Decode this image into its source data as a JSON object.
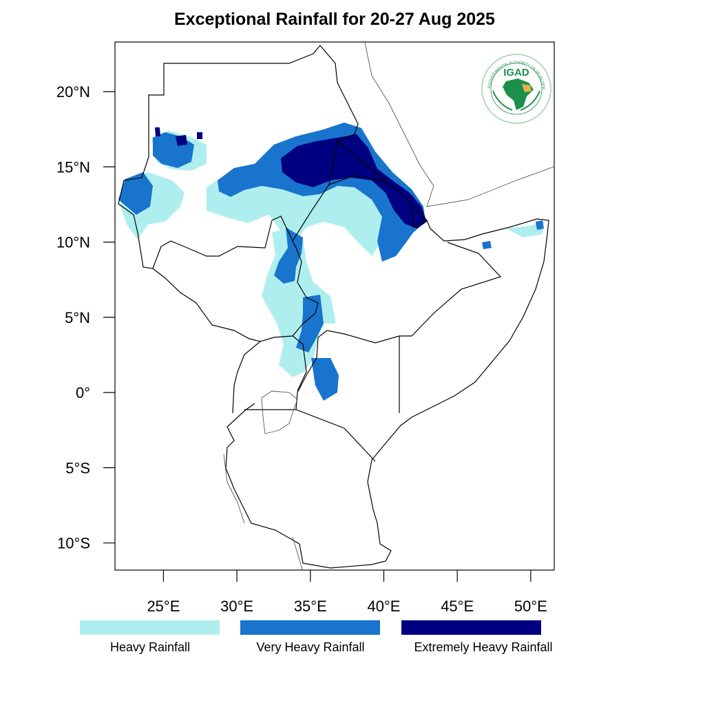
{
  "title": "Exceptional Rainfall for 20-27 Aug 2025",
  "axes": {
    "lat_ticks": [
      "20°N",
      "15°N",
      "10°N",
      "5°N",
      "0°",
      "5°S",
      "10°S"
    ],
    "lon_ticks": [
      "25°E",
      "30°E",
      "35°E",
      "40°E",
      "45°E",
      "50°E"
    ],
    "lat_values": [
      20,
      15,
      10,
      5,
      0,
      -5,
      -10
    ],
    "lon_values": [
      25,
      30,
      35,
      40,
      45,
      50
    ],
    "lon_range": [
      21.7,
      51.6
    ],
    "lat_range": [
      -11.8,
      23.3
    ]
  },
  "legend": [
    {
      "label": "Heavy Rainfall",
      "color": "#AFEEEE"
    },
    {
      "label": "Very Heavy Rainfall",
      "color": "#1874CD"
    },
    {
      "label": "Extremely Heavy Rainfall",
      "color": "#000080"
    }
  ],
  "logo": {
    "text": "IGAD",
    "ring_text": "INTERGOVERNMENTAL AUTHORITY ON DEVELOPMENT",
    "color": "#1e8f4a"
  }
}
